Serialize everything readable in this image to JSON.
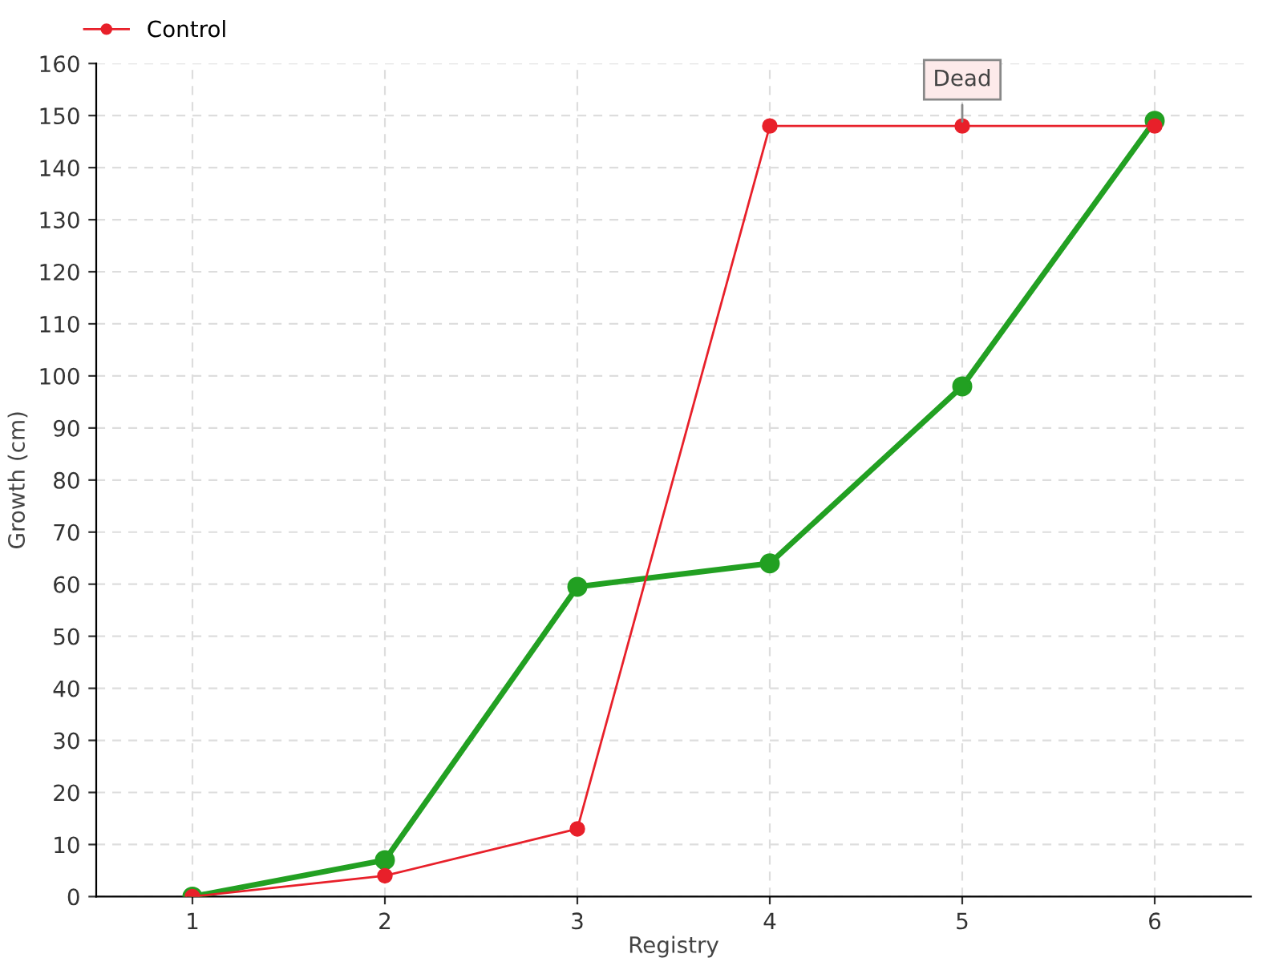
{
  "chart_data": {
    "type": "line",
    "xlabel": "Registry",
    "ylabel": "Growth (cm)",
    "x": [
      1,
      2,
      3,
      4,
      5,
      6
    ],
    "series": [
      {
        "color": "#22a022",
        "values": [
          0,
          7,
          59.5,
          64,
          98,
          149
        ]
      },
      {
        "name": "Control",
        "color": "#e8202a",
        "values": [
          0,
          4,
          13,
          148,
          148,
          148
        ]
      }
    ],
    "xlim": [
      0.5,
      6.5
    ],
    "xticks": [
      1,
      2,
      3,
      4,
      5,
      6
    ],
    "ylim": [
      0,
      160
    ],
    "yticks": [
      0,
      10,
      20,
      30,
      40,
      50,
      60,
      70,
      80,
      90,
      100,
      110,
      120,
      130,
      140,
      150,
      160
    ],
    "grid": true,
    "legend": "top left",
    "marker": "circle",
    "line_style": "solid",
    "annotations": [
      {
        "text": "Dead",
        "x": 5,
        "y": 148
      }
    ]
  }
}
